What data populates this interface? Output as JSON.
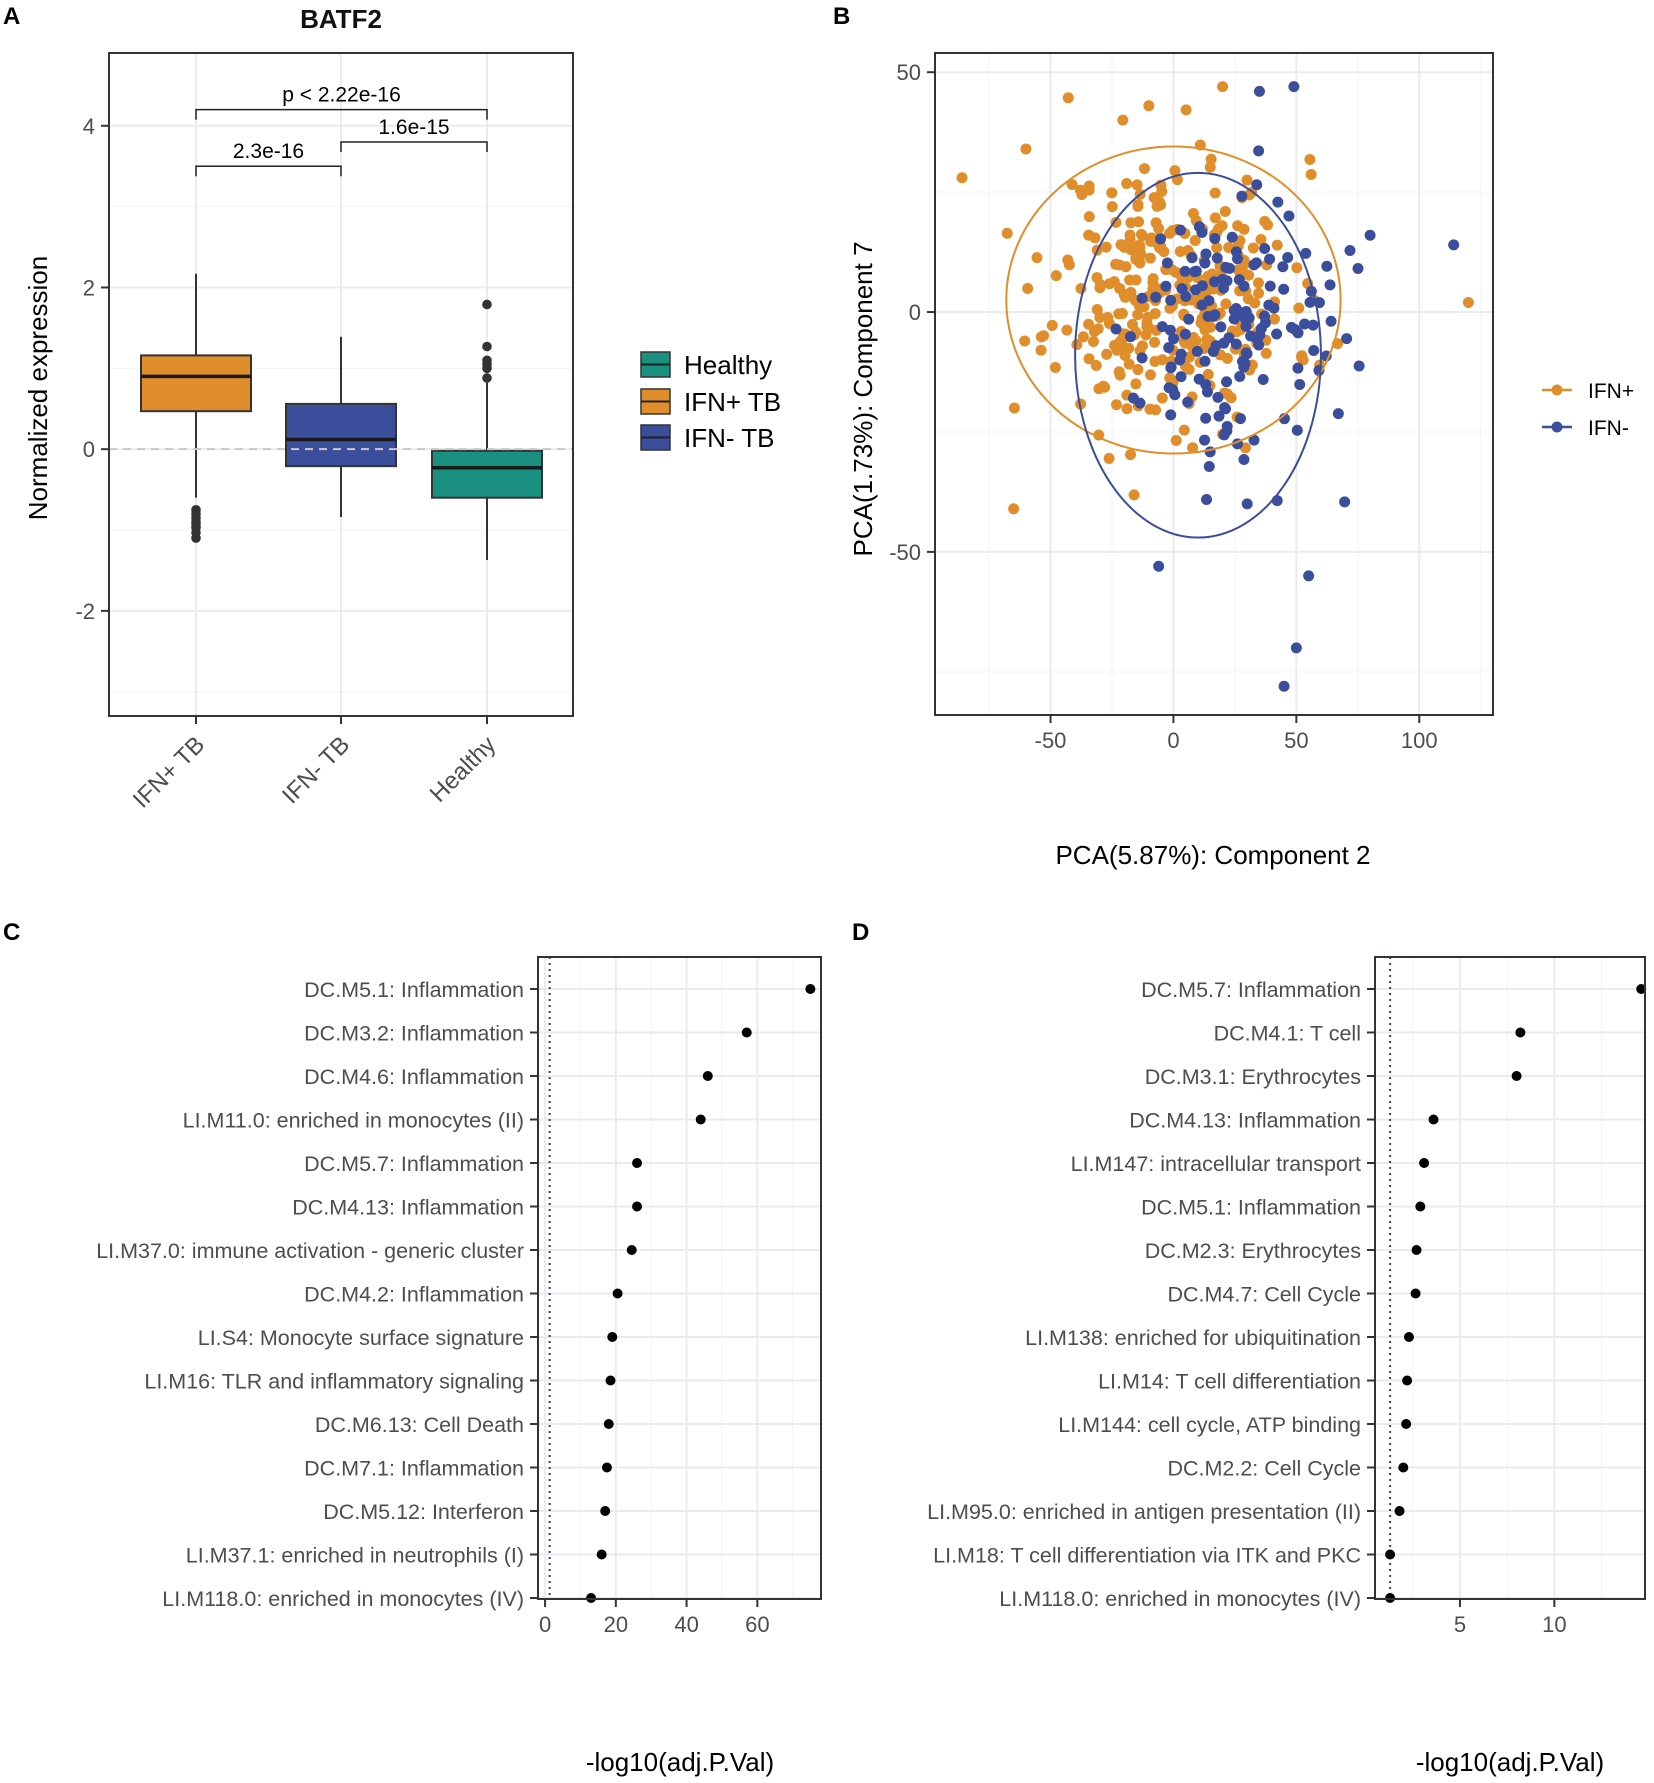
{
  "panels": {
    "a": "A",
    "b": "B",
    "c": "C",
    "d": "D"
  },
  "colors": {
    "healthy": "#1a9080",
    "ifn_pos": "#e08e2b",
    "ifn_neg": "#3b4e9c",
    "dot": "#000000",
    "threshold": "#3333bb"
  },
  "chart_data": [
    {
      "id": "A",
      "type": "box",
      "title": "BATF2",
      "ylabel": "Normalized expression",
      "ylim": [
        -3.3,
        4.9
      ],
      "yticks": [
        -2,
        0,
        2,
        4
      ],
      "ytick_labels": [
        "-2",
        "0",
        "2",
        "4"
      ],
      "categories": [
        "IFN+ TB",
        "IFN- TB",
        "Healthy"
      ],
      "boxes": [
        {
          "name": "IFN+ TB",
          "q1": 0.47,
          "median": 0.9,
          "q3": 1.16,
          "whisker_low": -0.6,
          "whisker_high": 2.17,
          "color_key": "ifn_pos",
          "outliers": [
            -0.75,
            -0.8,
            -0.85,
            -0.9,
            -0.93,
            -0.97,
            -1.03,
            -1.1
          ]
        },
        {
          "name": "IFN- TB",
          "q1": -0.21,
          "median": 0.12,
          "q3": 0.56,
          "whisker_low": -0.84,
          "whisker_high": 1.39,
          "color_key": "ifn_neg",
          "outliers": []
        },
        {
          "name": "Healthy",
          "q1": -0.6,
          "median": -0.23,
          "q3": -0.02,
          "whisker_low": -1.37,
          "whisker_high": 0.82,
          "color_key": "healthy",
          "outliers": [
            0.88,
            1.0,
            1.05,
            1.1,
            1.27,
            1.79
          ]
        }
      ],
      "reference_line_y": 0,
      "comparisons": [
        {
          "from": "IFN+ TB",
          "to": "IFN- TB",
          "label": "2.3e-16",
          "y": 3.5
        },
        {
          "from": "IFN- TB",
          "to": "Healthy",
          "label": "1.6e-15",
          "y": 3.8
        },
        {
          "from": "IFN+ TB",
          "to": "Healthy",
          "label": "p < 2.22e-16",
          "y": 4.2
        }
      ],
      "legend": [
        {
          "label": "Healthy",
          "color_key": "healthy"
        },
        {
          "label": "IFN+ TB",
          "color_key": "ifn_pos"
        },
        {
          "label": "IFN- TB",
          "color_key": "ifn_neg"
        }
      ]
    },
    {
      "id": "B",
      "type": "scatter",
      "xlabel": "PCA(5.87%): Component 2",
      "ylabel": "PCA(1.73%): Component 7",
      "xlim": [
        -97,
        130
      ],
      "ylim": [
        -84,
        54
      ],
      "xticks": [
        -50,
        0,
        50,
        100
      ],
      "xtick_labels": [
        "-50",
        "0",
        "50",
        "100"
      ],
      "yticks": [
        -50,
        0,
        50
      ],
      "ytick_labels": [
        "-50",
        "0",
        "50"
      ],
      "series": [
        {
          "name": "IFN+",
          "color_key": "ifn_pos",
          "seed": 11,
          "n": 330,
          "cx": 0,
          "cy": 4,
          "sx": 24,
          "sy": 14,
          "ellipse": {
            "cx": 0,
            "cy": 2.5,
            "rx": 68,
            "ry": 32
          },
          "extra_points": [
            [
              -65,
              -41
            ],
            [
              120,
              2
            ],
            [
              -86,
              28
            ],
            [
              -60,
              34
            ],
            [
              -10,
              43
            ],
            [
              20,
              47
            ]
          ]
        },
        {
          "name": "IFN-",
          "color_key": "ifn_neg",
          "seed": 29,
          "n": 150,
          "cx": 20,
          "cy": -3,
          "sx": 21,
          "sy": 14,
          "ellipse": {
            "cx": 10,
            "cy": -9,
            "rx": 50,
            "ry": 38
          },
          "extra_points": [
            [
              -6,
              -53
            ],
            [
              55,
              -55
            ],
            [
              50,
              -70
            ],
            [
              45,
              -78
            ],
            [
              114,
              14
            ],
            [
              80,
              16
            ],
            [
              35,
              46
            ],
            [
              49,
              47
            ],
            [
              30,
              -40
            ]
          ]
        }
      ],
      "legend": [
        {
          "label": "IFN+",
          "color_key": "ifn_pos"
        },
        {
          "label": "IFN-",
          "color_key": "ifn_neg"
        }
      ]
    },
    {
      "id": "C",
      "type": "dot",
      "xlabel": "-log10(adj.P.Val)",
      "xlim": [
        -2,
        78
      ],
      "xticks": [
        0,
        20,
        40,
        60
      ],
      "xtick_labels": [
        "0",
        "20",
        "40",
        "60"
      ],
      "threshold": 1.3,
      "terms": [
        "DC.M5.1: Inflammation",
        "DC.M3.2: Inflammation",
        "DC.M4.6: Inflammation",
        "LI.M11.0: enriched in monocytes (II)",
        "DC.M5.7: Inflammation",
        "DC.M4.13: Inflammation",
        "LI.M37.0: immune activation - generic cluster",
        "DC.M4.2: Inflammation",
        "LI.S4: Monocyte surface signature",
        "LI.M16: TLR and inflammatory signaling",
        "DC.M6.13: Cell Death",
        "DC.M7.1: Inflammation",
        "DC.M5.12: Interferon",
        "LI.M37.1: enriched in neutrophils (I)",
        "LI.M118.0: enriched in monocytes (IV)"
      ],
      "values": [
        75,
        57,
        46,
        44,
        26,
        26,
        24.5,
        20.5,
        19,
        18.5,
        18,
        17.5,
        17,
        16,
        13
      ]
    },
    {
      "id": "D",
      "type": "dot",
      "xlabel": "-log10(adj.P.Val)",
      "xlim": [
        0.5,
        14.8
      ],
      "xticks": [
        5,
        10
      ],
      "xtick_labels": [
        "5",
        "10"
      ],
      "threshold": 1.3,
      "terms": [
        "DC.M5.7: Inflammation",
        "DC.M4.1: T cell",
        "DC.M3.1: Erythrocytes",
        "DC.M4.13: Inflammation",
        "LI.M147: intracellular transport",
        "DC.M5.1: Inflammation",
        "DC.M2.3: Erythrocytes",
        "DC.M4.7: Cell Cycle",
        "LI.M138: enriched for ubiquitination",
        "LI.M14: T cell differentiation",
        "LI.M144: cell cycle, ATP binding",
        "DC.M2.2: Cell Cycle",
        "LI.M95.0: enriched in antigen presentation (II)",
        "LI.M18: T cell differentiation via ITK and PKC",
        "LI.M118.0: enriched in monocytes (IV)"
      ],
      "values": [
        14.6,
        8.2,
        8.0,
        3.6,
        3.1,
        2.9,
        2.7,
        2.65,
        2.3,
        2.2,
        2.15,
        2.0,
        1.8,
        1.3,
        1.3
      ]
    }
  ]
}
